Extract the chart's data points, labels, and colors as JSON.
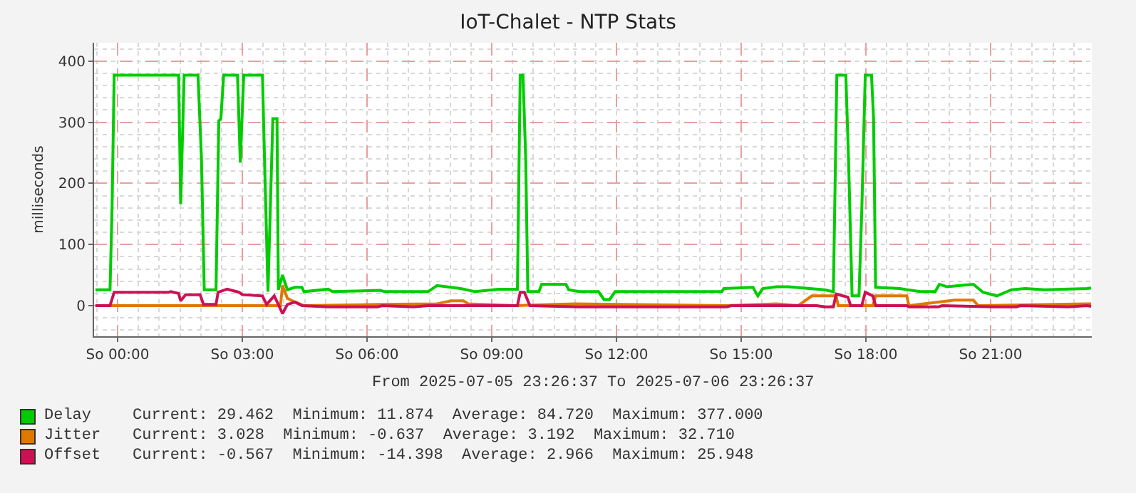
{
  "chart_data": {
    "type": "line",
    "title": "IoT-Chalet - NTP Stats",
    "ylabel": "milliseconds",
    "xlim": [
      "2025-07-05T23:26",
      "2025-07-06T23:26"
    ],
    "xticks": [
      {
        "value": "2025-07-06T00:00",
        "label": "So 00:00"
      },
      {
        "value": "2025-07-06T03:00",
        "label": "So 03:00"
      },
      {
        "value": "2025-07-06T06:00",
        "label": "So 06:00"
      },
      {
        "value": "2025-07-06T09:00",
        "label": "So 09:00"
      },
      {
        "value": "2025-07-06T12:00",
        "label": "So 12:00"
      },
      {
        "value": "2025-07-06T15:00",
        "label": "So 15:00"
      },
      {
        "value": "2025-07-06T18:00",
        "label": "So 18:00"
      },
      {
        "value": "2025-07-06T21:00",
        "label": "So 21:00"
      }
    ],
    "ylim": [
      -50,
      430
    ],
    "yticks": [
      0,
      100,
      200,
      300,
      400
    ],
    "grid": true,
    "legend": "bottom left",
    "annotations": [
      "From 2025-07-05 23:26:37 To 2025-07-06 23:26:37",
      "Current: 29.462  Minimum: 11.874  Average: 84.720  Maximum: 377.000",
      "Current: 3.028  Minimum: -0.637  Average: 3.192  Maximum: 32.710",
      "Current: -0.567  Minimum: -14.398  Average: 2.966  Maximum: 25.948"
    ],
    "series": [
      {
        "name": "Delay",
        "color": "#00cc00",
        "x": [
          "2025-07-05T23:28",
          "2025-07-05T23:49",
          "2025-07-05T23:52",
          "2025-07-05T23:55",
          "2025-07-06T01:28",
          "2025-07-06T01:31",
          "2025-07-06T01:36",
          "2025-07-06T01:56",
          "2025-07-06T02:01",
          "2025-07-06T02:05",
          "2025-07-06T02:22",
          "2025-07-06T02:26",
          "2025-07-06T02:29",
          "2025-07-06T02:33",
          "2025-07-06T02:53",
          "2025-07-06T02:57",
          "2025-07-06T03:02",
          "2025-07-06T03:29",
          "2025-07-06T03:32",
          "2025-07-06T03:37",
          "2025-07-06T03:44",
          "2025-07-06T03:50",
          "2025-07-06T03:52",
          "2025-07-06T03:58",
          "2025-07-06T04:05",
          "2025-07-06T04:16",
          "2025-07-06T04:26",
          "2025-07-06T04:29",
          "2025-07-06T05:04",
          "2025-07-06T05:10",
          "2025-07-06T06:19",
          "2025-07-06T06:25",
          "2025-07-06T07:28",
          "2025-07-06T07:41",
          "2025-07-06T08:15",
          "2025-07-06T08:36",
          "2025-07-06T09:10",
          "2025-07-06T09:37",
          "2025-07-06T09:41",
          "2025-07-06T09:45",
          "2025-07-06T09:49",
          "2025-07-06T09:52",
          "2025-07-06T10:08",
          "2025-07-06T10:12",
          "2025-07-06T10:47",
          "2025-07-06T10:51",
          "2025-07-06T11:06",
          "2025-07-06T11:34",
          "2025-07-06T11:42",
          "2025-07-06T11:50",
          "2025-07-06T11:58",
          "2025-07-06T14:32",
          "2025-07-06T14:35",
          "2025-07-06T15:17",
          "2025-07-06T15:24",
          "2025-07-06T15:31",
          "2025-07-06T15:51",
          "2025-07-06T16:08",
          "2025-07-06T17:00",
          "2025-07-06T17:13",
          "2025-07-06T17:18",
          "2025-07-06T17:31",
          "2025-07-06T17:35",
          "2025-07-06T17:40",
          "2025-07-06T17:50",
          "2025-07-06T17:54",
          "2025-07-06T17:59",
          "2025-07-06T18:08",
          "2025-07-06T18:11",
          "2025-07-06T18:14",
          "2025-07-06T18:49",
          "2025-07-06T19:18",
          "2025-07-06T19:40",
          "2025-07-06T19:46",
          "2025-07-06T19:57",
          "2025-07-06T20:35",
          "2025-07-06T20:49",
          "2025-07-06T21:09",
          "2025-07-06T21:30",
          "2025-07-06T21:50",
          "2025-07-06T22:18",
          "2025-07-06T23:19",
          "2025-07-06T23:25"
        ],
        "values": [
          26,
          26,
          162,
          377,
          377,
          166,
          377,
          377,
          240,
          26,
          26,
          302,
          306,
          377,
          377,
          234,
          377,
          377,
          240,
          23,
          306,
          306,
          26,
          50,
          26,
          30,
          30,
          23,
          27,
          23,
          25,
          23,
          23,
          33,
          28,
          23,
          27,
          27,
          377,
          377,
          239,
          23,
          23,
          35,
          35,
          26,
          23,
          23,
          10,
          10,
          23,
          23,
          28,
          30,
          16,
          28,
          31,
          31,
          26,
          23,
          377,
          377,
          234,
          16,
          16,
          156,
          377,
          377,
          306,
          30,
          28,
          23,
          23,
          35,
          31,
          35,
          22,
          16,
          26,
          28,
          26,
          28,
          29
        ]
      },
      {
        "name": "Jitter",
        "color": "#e07800",
        "x": [
          "2025-07-05T23:28",
          "2025-07-06T03:55",
          "2025-07-06T03:58",
          "2025-07-06T04:05",
          "2025-07-06T04:16",
          "2025-07-06T04:29",
          "2025-07-06T06:19",
          "2025-07-06T07:41",
          "2025-07-06T08:01",
          "2025-07-06T08:19",
          "2025-07-06T08:26",
          "2025-07-06T09:34",
          "2025-07-06T09:58",
          "2025-07-06T11:00",
          "2025-07-06T14:39",
          "2025-07-06T15:51",
          "2025-07-06T16:22",
          "2025-07-06T16:42",
          "2025-07-06T17:17",
          "2025-07-06T17:20",
          "2025-07-06T18:10",
          "2025-07-06T18:14",
          "2025-07-06T18:59",
          "2025-07-06T19:02",
          "2025-07-06T20:08",
          "2025-07-06T20:35",
          "2025-07-06T20:42",
          "2025-07-06T23:25"
        ],
        "values": [
          0,
          0,
          33,
          12,
          6,
          0,
          2,
          3,
          8,
          8,
          3,
          0,
          1,
          3,
          0,
          3,
          0,
          16,
          16,
          0,
          0,
          16,
          16,
          0,
          9,
          9,
          0,
          3
        ]
      },
      {
        "name": "Offset",
        "color": "#cc1155",
        "x": [
          "2025-07-05T23:28",
          "2025-07-05T23:49",
          "2025-07-05T23:55",
          "2025-07-06T01:14",
          "2025-07-06T01:17",
          "2025-07-06T01:28",
          "2025-07-06T01:31",
          "2025-07-06T01:38",
          "2025-07-06T01:59",
          "2025-07-06T02:04",
          "2025-07-06T02:22",
          "2025-07-06T02:25",
          "2025-07-06T02:38",
          "2025-07-06T02:55",
          "2025-07-06T03:00",
          "2025-07-06T03:29",
          "2025-07-06T03:35",
          "2025-07-06T03:46",
          "2025-07-06T03:52",
          "2025-07-06T03:58",
          "2025-07-06T04:05",
          "2025-07-06T04:16",
          "2025-07-06T04:26",
          "2025-07-06T05:04",
          "2025-07-06T06:15",
          "2025-07-06T06:22",
          "2025-07-06T07:07",
          "2025-07-06T07:28",
          "2025-07-06T09:37",
          "2025-07-06T09:41",
          "2025-07-06T09:47",
          "2025-07-06T09:55",
          "2025-07-06T11:07",
          "2025-07-06T14:39",
          "2025-07-06T14:46",
          "2025-07-06T16:49",
          "2025-07-06T17:00",
          "2025-07-06T17:13",
          "2025-07-06T17:17",
          "2025-07-06T17:34",
          "2025-07-06T17:38",
          "2025-07-06T17:54",
          "2025-07-06T17:59",
          "2025-07-06T18:10",
          "2025-07-06T18:14",
          "2025-07-06T18:59",
          "2025-07-06T19:02",
          "2025-07-06T19:44",
          "2025-07-06T19:50",
          "2025-07-06T21:05",
          "2025-07-06T21:37",
          "2025-07-06T21:43",
          "2025-07-06T22:52",
          "2025-07-06T23:19",
          "2025-07-06T23:25"
        ],
        "values": [
          0,
          0,
          22,
          22,
          23,
          20,
          8,
          18,
          18,
          2,
          2,
          22,
          27,
          22,
          18,
          16,
          2,
          16,
          2,
          -13,
          2,
          6,
          0,
          -2,
          -2,
          0,
          -2,
          0,
          0,
          22,
          22,
          0,
          -2,
          -2,
          0,
          0,
          -2,
          -2,
          19,
          14,
          0,
          0,
          22,
          16,
          0,
          0,
          -2,
          -2,
          0,
          -2,
          -2,
          0,
          -2,
          0,
          -1
        ]
      }
    ]
  }
}
